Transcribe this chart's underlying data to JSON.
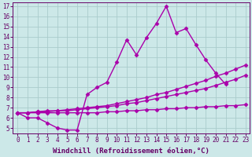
{
  "xlabel": "Windchill (Refroidissement éolien,°C)",
  "background_color": "#cce8e8",
  "grid_color": "#aacccc",
  "line_color": "#aa00aa",
  "xlim": [
    -0.5,
    23.4
  ],
  "ylim": [
    4.5,
    17.4
  ],
  "xticks": [
    0,
    1,
    2,
    3,
    4,
    5,
    6,
    7,
    8,
    9,
    10,
    11,
    12,
    13,
    14,
    15,
    16,
    17,
    18,
    19,
    20,
    21,
    22,
    23
  ],
  "yticks": [
    5,
    6,
    7,
    8,
    9,
    10,
    11,
    12,
    13,
    14,
    15,
    16,
    17
  ],
  "line1_x": [
    0,
    1,
    2,
    3,
    4,
    5,
    6,
    7,
    8,
    9,
    10,
    11,
    12,
    13,
    14,
    15,
    16,
    17,
    18,
    19,
    20,
    21
  ],
  "line1_y": [
    6.5,
    6.0,
    6.0,
    5.5,
    5.0,
    4.8,
    4.8,
    8.3,
    9.0,
    9.5,
    11.5,
    13.7,
    12.2,
    13.9,
    15.3,
    17.0,
    14.4,
    14.8,
    13.2,
    11.7,
    10.4,
    9.3
  ],
  "line2_x": [
    0,
    1,
    2,
    3,
    4,
    5,
    6,
    7,
    8,
    9,
    10,
    11,
    12,
    13,
    14,
    15,
    16,
    17,
    18,
    19,
    20,
    21,
    22,
    23
  ],
  "line2_y": [
    6.5,
    6.5,
    6.6,
    6.6,
    6.7,
    6.7,
    6.8,
    6.9,
    7.0,
    7.1,
    7.2,
    7.4,
    7.5,
    7.7,
    7.9,
    8.1,
    8.3,
    8.5,
    8.7,
    8.9,
    9.2,
    9.5,
    9.8,
    10.2
  ],
  "line3_x": [
    0,
    1,
    2,
    3,
    4,
    5,
    6,
    7,
    8,
    9,
    10,
    11,
    12,
    13,
    14,
    15,
    16,
    17,
    18,
    19,
    20,
    21,
    22,
    23
  ],
  "line3_y": [
    6.5,
    6.5,
    6.6,
    6.7,
    6.7,
    6.8,
    6.9,
    7.0,
    7.1,
    7.2,
    7.4,
    7.6,
    7.8,
    8.0,
    8.3,
    8.5,
    8.8,
    9.1,
    9.4,
    9.7,
    10.1,
    10.4,
    10.8,
    11.2
  ],
  "line4_x": [
    0,
    1,
    2,
    3,
    4,
    5,
    6,
    7,
    8,
    9,
    10,
    11,
    12,
    13,
    14,
    15,
    16,
    17,
    18,
    19,
    20,
    21,
    22,
    23
  ],
  "line4_y": [
    6.5,
    6.5,
    6.5,
    6.5,
    6.5,
    6.5,
    6.5,
    6.5,
    6.5,
    6.6,
    6.6,
    6.7,
    6.7,
    6.8,
    6.8,
    6.9,
    6.9,
    7.0,
    7.0,
    7.1,
    7.1,
    7.2,
    7.2,
    7.3
  ],
  "marker": "D",
  "markersize": 2.5,
  "linewidth": 1.0,
  "tick_fontsize": 5.5,
  "xlabel_fontsize": 6.5
}
